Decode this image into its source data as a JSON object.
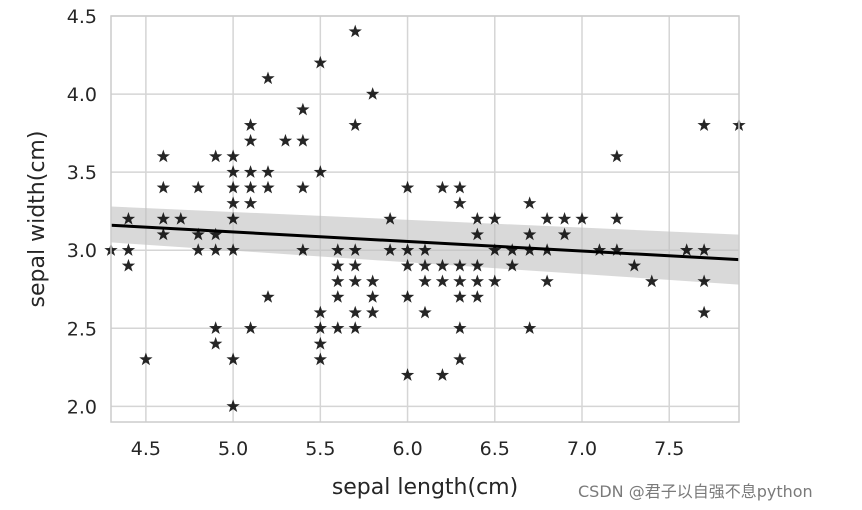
{
  "watermark": "CSDN @君子以自强不息python",
  "colors": {
    "marker": "#000000",
    "regression_line": "#000000",
    "confidence_band": "#bfbfbf",
    "grid": "#d5d5d5",
    "frame": "#cccccc",
    "text": "#262626"
  },
  "chart_data": {
    "type": "scatter",
    "title": "",
    "xlabel": "sepal length(cm)",
    "ylabel": "sepal width(cm)",
    "xlim": [
      4.3,
      7.9
    ],
    "ylim": [
      1.9,
      4.5
    ],
    "xticks": [
      4.5,
      5.0,
      5.5,
      6.0,
      6.5,
      7.0,
      7.5
    ],
    "xtick_labels": [
      "4.5",
      "5.0",
      "5.5",
      "6.0",
      "6.5",
      "7.0",
      "7.5"
    ],
    "yticks": [
      2.0,
      2.5,
      3.0,
      3.5,
      4.0,
      4.5
    ],
    "ytick_labels": [
      "2.0",
      "2.5",
      "3.0",
      "3.5",
      "4.0",
      "4.5"
    ],
    "grid": true,
    "legend": false,
    "marker": "star",
    "regression": {
      "x": [
        4.3,
        7.9
      ],
      "y": [
        3.16,
        2.94
      ],
      "ci_lower": [
        3.05,
        2.78
      ],
      "ci_upper": [
        3.28,
        3.1
      ]
    },
    "points": [
      [
        4.3,
        3.0
      ],
      [
        4.4,
        2.9
      ],
      [
        4.4,
        3.0
      ],
      [
        4.4,
        3.2
      ],
      [
        4.5,
        2.3
      ],
      [
        4.6,
        3.1
      ],
      [
        4.6,
        3.2
      ],
      [
        4.6,
        3.4
      ],
      [
        4.6,
        3.6
      ],
      [
        4.7,
        3.2
      ],
      [
        4.8,
        3.0
      ],
      [
        4.8,
        3.1
      ],
      [
        4.8,
        3.4
      ],
      [
        4.9,
        2.4
      ],
      [
        4.9,
        2.5
      ],
      [
        4.9,
        3.0
      ],
      [
        4.9,
        3.1
      ],
      [
        4.9,
        3.6
      ],
      [
        5.0,
        2.0
      ],
      [
        5.0,
        2.3
      ],
      [
        5.0,
        3.0
      ],
      [
        5.0,
        3.2
      ],
      [
        5.0,
        3.3
      ],
      [
        5.0,
        3.4
      ],
      [
        5.0,
        3.5
      ],
      [
        5.0,
        3.6
      ],
      [
        5.1,
        2.5
      ],
      [
        5.1,
        3.3
      ],
      [
        5.1,
        3.4
      ],
      [
        5.1,
        3.5
      ],
      [
        5.1,
        3.7
      ],
      [
        5.1,
        3.8
      ],
      [
        5.2,
        2.7
      ],
      [
        5.2,
        3.4
      ],
      [
        5.2,
        3.5
      ],
      [
        5.2,
        4.1
      ],
      [
        5.3,
        3.7
      ],
      [
        5.4,
        3.0
      ],
      [
        5.4,
        3.4
      ],
      [
        5.4,
        3.7
      ],
      [
        5.4,
        3.9
      ],
      [
        5.5,
        2.3
      ],
      [
        5.5,
        2.4
      ],
      [
        5.5,
        2.5
      ],
      [
        5.5,
        2.6
      ],
      [
        5.5,
        3.5
      ],
      [
        5.5,
        4.2
      ],
      [
        5.6,
        2.5
      ],
      [
        5.6,
        2.7
      ],
      [
        5.6,
        2.8
      ],
      [
        5.6,
        2.9
      ],
      [
        5.6,
        3.0
      ],
      [
        5.7,
        2.5
      ],
      [
        5.7,
        2.6
      ],
      [
        5.7,
        2.8
      ],
      [
        5.7,
        2.9
      ],
      [
        5.7,
        3.0
      ],
      [
        5.7,
        3.8
      ],
      [
        5.7,
        4.4
      ],
      [
        5.8,
        2.6
      ],
      [
        5.8,
        2.7
      ],
      [
        5.8,
        2.8
      ],
      [
        5.8,
        4.0
      ],
      [
        5.9,
        3.0
      ],
      [
        5.9,
        3.2
      ],
      [
        6.0,
        2.2
      ],
      [
        6.0,
        2.7
      ],
      [
        6.0,
        2.9
      ],
      [
        6.0,
        3.0
      ],
      [
        6.0,
        3.4
      ],
      [
        6.1,
        2.6
      ],
      [
        6.1,
        2.8
      ],
      [
        6.1,
        2.9
      ],
      [
        6.1,
        3.0
      ],
      [
        6.2,
        2.2
      ],
      [
        6.2,
        2.8
      ],
      [
        6.2,
        2.9
      ],
      [
        6.2,
        3.4
      ],
      [
        6.3,
        2.3
      ],
      [
        6.3,
        2.5
      ],
      [
        6.3,
        2.7
      ],
      [
        6.3,
        2.8
      ],
      [
        6.3,
        2.9
      ],
      [
        6.3,
        3.3
      ],
      [
        6.3,
        3.4
      ],
      [
        6.4,
        2.7
      ],
      [
        6.4,
        2.8
      ],
      [
        6.4,
        2.9
      ],
      [
        6.4,
        3.1
      ],
      [
        6.4,
        3.2
      ],
      [
        6.5,
        2.8
      ],
      [
        6.5,
        3.0
      ],
      [
        6.5,
        3.2
      ],
      [
        6.6,
        2.9
      ],
      [
        6.6,
        3.0
      ],
      [
        6.7,
        2.5
      ],
      [
        6.7,
        3.0
      ],
      [
        6.7,
        3.1
      ],
      [
        6.7,
        3.3
      ],
      [
        6.8,
        2.8
      ],
      [
        6.8,
        3.0
      ],
      [
        6.8,
        3.2
      ],
      [
        6.9,
        3.1
      ],
      [
        6.9,
        3.2
      ],
      [
        7.0,
        3.2
      ],
      [
        7.1,
        3.0
      ],
      [
        7.2,
        3.0
      ],
      [
        7.2,
        3.2
      ],
      [
        7.2,
        3.6
      ],
      [
        7.3,
        2.9
      ],
      [
        7.4,
        2.8
      ],
      [
        7.6,
        3.0
      ],
      [
        7.7,
        2.6
      ],
      [
        7.7,
        2.8
      ],
      [
        7.7,
        3.0
      ],
      [
        7.7,
        3.8
      ],
      [
        7.9,
        3.8
      ]
    ]
  }
}
